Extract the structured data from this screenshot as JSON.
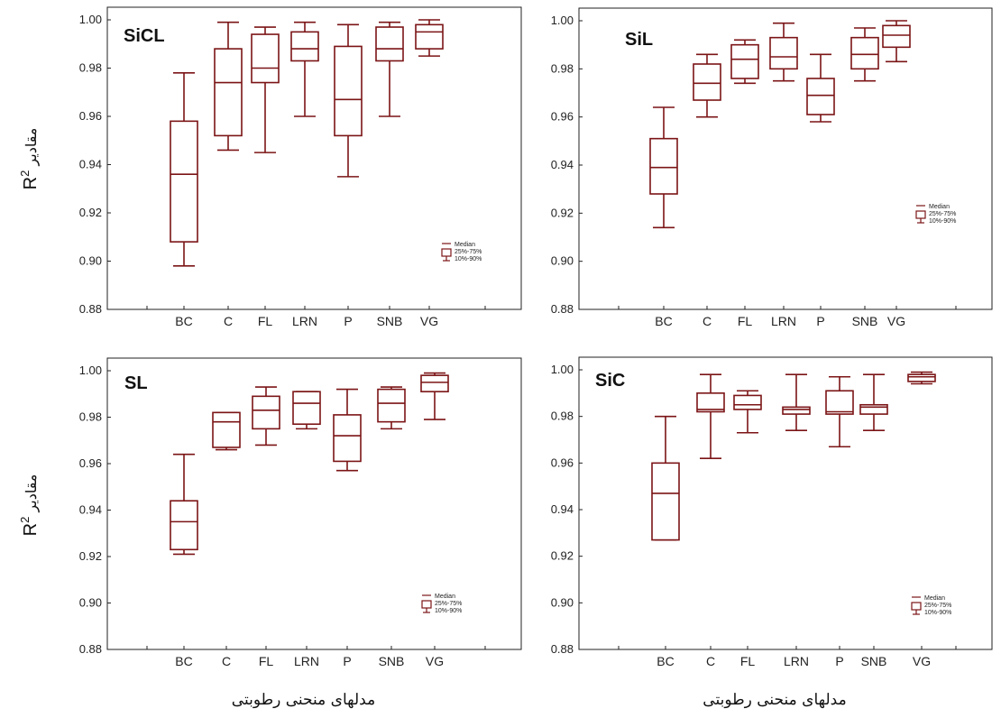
{
  "colors": {
    "box": "#7b1416",
    "axis": "#222222"
  },
  "chart_data": [
    {
      "type": "box",
      "title": "SiCL",
      "ylabel": "R2 مقادیر",
      "xlabel": "",
      "ylim": [
        0.88,
        1.0
      ],
      "yticks": [
        "0.88",
        "0.90",
        "0.92",
        "0.94",
        "0.96",
        "0.98",
        "1.00"
      ],
      "categories": [
        "BC",
        "C",
        "FL",
        "LRN",
        "P",
        "SNB",
        "VG"
      ],
      "boxes": [
        {
          "p10": 0.898,
          "q1": 0.908,
          "median": 0.936,
          "q3": 0.958,
          "p90": 0.978
        },
        {
          "p10": 0.946,
          "q1": 0.952,
          "median": 0.974,
          "q3": 0.988,
          "p90": 0.999
        },
        {
          "p10": 0.945,
          "q1": 0.974,
          "median": 0.98,
          "q3": 0.994,
          "p90": 0.997
        },
        {
          "p10": 0.96,
          "q1": 0.983,
          "median": 0.988,
          "q3": 0.995,
          "p90": 0.999
        },
        {
          "p10": 0.935,
          "q1": 0.952,
          "median": 0.967,
          "q3": 0.989,
          "p90": 0.998
        },
        {
          "p10": 0.96,
          "q1": 0.983,
          "median": 0.988,
          "q3": 0.997,
          "p90": 0.999
        },
        {
          "p10": 0.985,
          "q1": 0.988,
          "median": 0.995,
          "q3": 0.998,
          "p90": 1.0
        }
      ],
      "legend": [
        "Median",
        "25%-75%",
        "10%-90%"
      ]
    },
    {
      "type": "box",
      "title": "SiL",
      "ylabel": "",
      "xlabel": "",
      "ylim": [
        0.88,
        1.0
      ],
      "yticks": [
        "0.88",
        "0.90",
        "0.92",
        "0.94",
        "0.96",
        "0.98",
        "1.00"
      ],
      "categories": [
        "BC",
        "C",
        "FL",
        "LRN",
        "P",
        "SNB",
        "VG"
      ],
      "boxes": [
        {
          "p10": 0.914,
          "q1": 0.928,
          "median": 0.939,
          "q3": 0.951,
          "p90": 0.964
        },
        {
          "p10": 0.96,
          "q1": 0.967,
          "median": 0.974,
          "q3": 0.982,
          "p90": 0.986
        },
        {
          "p10": 0.974,
          "q1": 0.976,
          "median": 0.984,
          "q3": 0.99,
          "p90": 0.992
        },
        {
          "p10": 0.975,
          "q1": 0.98,
          "median": 0.985,
          "q3": 0.993,
          "p90": 0.999
        },
        {
          "p10": 0.958,
          "q1": 0.961,
          "median": 0.969,
          "q3": 0.976,
          "p90": 0.986
        },
        {
          "p10": 0.975,
          "q1": 0.98,
          "median": 0.986,
          "q3": 0.993,
          "p90": 0.997
        },
        {
          "p10": 0.983,
          "q1": 0.989,
          "median": 0.994,
          "q3": 0.998,
          "p90": 1.0
        }
      ],
      "legend": [
        "Median",
        "25%-75%",
        "10%-90%"
      ]
    },
    {
      "type": "box",
      "title": "SL",
      "ylabel": "R2 مقادیر",
      "xlabel": "مدلهای منحنی رطوبتی",
      "ylim": [
        0.88,
        1.0
      ],
      "yticks": [
        "0.88",
        "0.90",
        "0.92",
        "0.94",
        "0.96",
        "0.98",
        "1.00"
      ],
      "categories": [
        "BC",
        "C",
        "FL",
        "LRN",
        "P",
        "SNB",
        "VG"
      ],
      "boxes": [
        {
          "p10": 0.921,
          "q1": 0.923,
          "median": 0.935,
          "q3": 0.944,
          "p90": 0.964
        },
        {
          "p10": 0.966,
          "q1": 0.967,
          "median": 0.978,
          "q3": 0.982,
          "p90": 0.982
        },
        {
          "p10": 0.968,
          "q1": 0.975,
          "median": 0.983,
          "q3": 0.989,
          "p90": 0.993
        },
        {
          "p10": 0.975,
          "q1": 0.977,
          "median": 0.986,
          "q3": 0.991,
          "p90": 0.991
        },
        {
          "p10": 0.957,
          "q1": 0.961,
          "median": 0.972,
          "q3": 0.981,
          "p90": 0.992
        },
        {
          "p10": 0.975,
          "q1": 0.978,
          "median": 0.986,
          "q3": 0.992,
          "p90": 0.993
        },
        {
          "p10": 0.979,
          "q1": 0.991,
          "median": 0.995,
          "q3": 0.998,
          "p90": 0.999
        }
      ],
      "legend": [
        "Median",
        "25%-75%",
        "10%-90%"
      ]
    },
    {
      "type": "box",
      "title": "SiC",
      "ylabel": "",
      "xlabel": "مدلهای منحنی رطوبتی",
      "ylim": [
        0.88,
        1.0
      ],
      "yticks": [
        "0.88",
        "0.90",
        "0.92",
        "0.94",
        "0.96",
        "0.98",
        "1.00"
      ],
      "categories": [
        "BC",
        "C",
        "FL",
        "LRN",
        "P",
        "SNB",
        "VG"
      ],
      "boxes": [
        {
          "p10": 0.927,
          "q1": 0.927,
          "median": 0.947,
          "q3": 0.96,
          "p90": 0.98
        },
        {
          "p10": 0.962,
          "q1": 0.982,
          "median": 0.983,
          "q3": 0.99,
          "p90": 0.998
        },
        {
          "p10": 0.973,
          "q1": 0.983,
          "median": 0.985,
          "q3": 0.989,
          "p90": 0.991
        },
        {
          "p10": 0.974,
          "q1": 0.981,
          "median": 0.983,
          "q3": 0.984,
          "p90": 0.998
        },
        {
          "p10": 0.967,
          "q1": 0.981,
          "median": 0.982,
          "q3": 0.991,
          "p90": 0.997
        },
        {
          "p10": 0.974,
          "q1": 0.981,
          "median": 0.984,
          "q3": 0.985,
          "p90": 0.998
        },
        {
          "p10": 0.994,
          "q1": 0.995,
          "median": 0.997,
          "q3": 0.998,
          "p90": 0.999
        }
      ],
      "legend": [
        "Median",
        "25%-75%",
        "10%-90%"
      ]
    }
  ]
}
